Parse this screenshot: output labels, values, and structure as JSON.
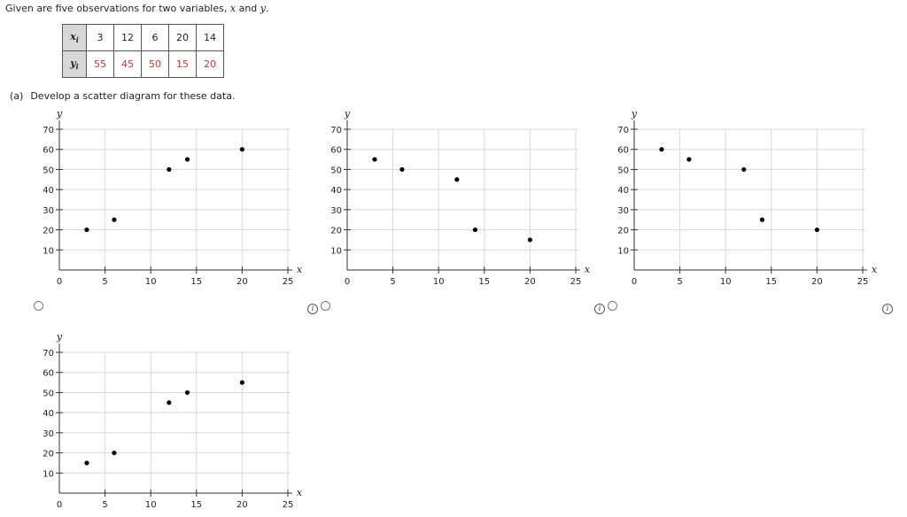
{
  "intro": {
    "text_before": "Given are five observations for two variables, ",
    "var_x": "x",
    "text_and": " and ",
    "var_y": "y",
    "text_end": "."
  },
  "table": {
    "x_label": "x",
    "y_label": "y",
    "subscript": "i",
    "x_values": [
      "3",
      "12",
      "6",
      "20",
      "14"
    ],
    "y_values": [
      "55",
      "45",
      "50",
      "15",
      "20"
    ]
  },
  "question": {
    "part_label": "(a)",
    "prompt": "Develop a scatter diagram for these data."
  },
  "colors": {
    "point": "#000000",
    "grid": "#d9d9d9",
    "y_value_text": "#c0392b"
  },
  "chart_data": [
    {
      "type": "scatter",
      "option": 1,
      "xlabel": "x",
      "ylabel": "y",
      "xlim": [
        0,
        25
      ],
      "ylim": [
        0,
        70
      ],
      "xticks": [
        "0",
        "5",
        "10",
        "15",
        "20",
        "25"
      ],
      "yticks": [
        "10",
        "20",
        "30",
        "40",
        "50",
        "60",
        "70"
      ],
      "grid": true,
      "points": [
        [
          3,
          20
        ],
        [
          6,
          25
        ],
        [
          12,
          50
        ],
        [
          14,
          55
        ],
        [
          20,
          60
        ]
      ]
    },
    {
      "type": "scatter",
      "option": 2,
      "xlabel": "x",
      "ylabel": "y",
      "xlim": [
        0,
        25
      ],
      "ylim": [
        0,
        70
      ],
      "xticks": [
        "0",
        "5",
        "10",
        "15",
        "20",
        "25"
      ],
      "yticks": [
        "10",
        "20",
        "30",
        "40",
        "50",
        "60",
        "70"
      ],
      "grid": true,
      "points": [
        [
          3,
          55
        ],
        [
          6,
          50
        ],
        [
          12,
          45
        ],
        [
          14,
          20
        ],
        [
          20,
          15
        ]
      ]
    },
    {
      "type": "scatter",
      "option": 3,
      "xlabel": "x",
      "ylabel": "y",
      "xlim": [
        0,
        25
      ],
      "ylim": [
        0,
        70
      ],
      "xticks": [
        "0",
        "5",
        "10",
        "15",
        "20",
        "25"
      ],
      "yticks": [
        "10",
        "20",
        "30",
        "40",
        "50",
        "60",
        "70"
      ],
      "grid": true,
      "points": [
        [
          3,
          60
        ],
        [
          6,
          55
        ],
        [
          12,
          50
        ],
        [
          14,
          25
        ],
        [
          20,
          20
        ]
      ]
    },
    {
      "type": "scatter",
      "option": 4,
      "xlabel": "x",
      "ylabel": "y",
      "xlim": [
        0,
        25
      ],
      "ylim": [
        0,
        70
      ],
      "xticks": [
        "0",
        "5",
        "10",
        "15",
        "20",
        "25"
      ],
      "yticks": [
        "10",
        "20",
        "30",
        "40",
        "50",
        "60",
        "70"
      ],
      "grid": true,
      "points": [
        [
          3,
          15
        ],
        [
          6,
          20
        ],
        [
          12,
          45
        ],
        [
          14,
          50
        ],
        [
          20,
          55
        ]
      ]
    }
  ]
}
